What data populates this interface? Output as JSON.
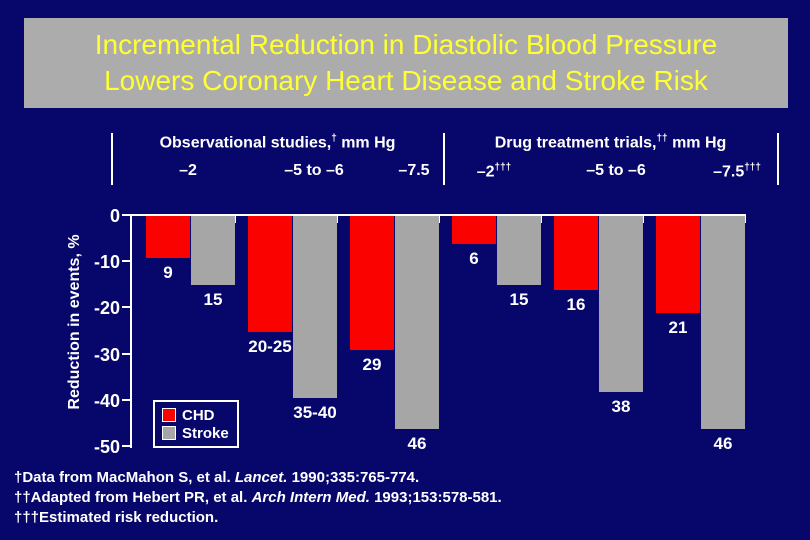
{
  "title": {
    "line1": "Incremental Reduction in Diastolic Blood Pressure",
    "line2": "Lowers Coronary Heart Disease and Stroke Risk"
  },
  "columns": [
    {
      "header": {
        "pre": "Observational studies,",
        "sup": "†",
        "post": " mm Hg"
      },
      "sub_labels": [
        {
          "text": "–2",
          "sup": ""
        },
        {
          "text": "–5 to –6",
          "sup": ""
        },
        {
          "text": "–7.5",
          "sup": ""
        }
      ]
    },
    {
      "header": {
        "pre": "Drug treatment trials,",
        "sup": "††",
        "post": " mm Hg"
      },
      "sub_labels": [
        {
          "text": "–2",
          "sup": "†††"
        },
        {
          "text": "–5 to –6",
          "sup": ""
        },
        {
          "text": "–7.5",
          "sup": "†††"
        }
      ]
    }
  ],
  "y_axis": {
    "title": "Reduction in events, %",
    "ticks": [
      "0",
      "-10",
      "-20",
      "-30",
      "-40",
      "-50"
    ]
  },
  "chart_data": {
    "type": "bar",
    "title": "Incremental Reduction in Diastolic Blood Pressure Lowers Coronary Heart Disease and Stroke Risk",
    "xlabel": "",
    "ylabel": "Reduction in events, %",
    "ylim": [
      -50,
      0
    ],
    "y_ticks": [
      0,
      -10,
      -20,
      -30,
      -40,
      -50
    ],
    "grid": false,
    "legend_position": "inside-bottom-left",
    "group_sections": [
      {
        "section": "Observational studies, mm Hg",
        "categories": [
          "–2",
          "–5 to –6",
          "–7.5"
        ]
      },
      {
        "section": "Drug treatment trials, mm Hg",
        "categories": [
          "–2†††",
          "–5 to –6",
          "–7.5†††"
        ]
      }
    ],
    "categories": [
      "–2",
      "–5 to –6",
      "–7.5",
      "–2†††",
      "–5 to –6",
      "–7.5†††"
    ],
    "series": [
      {
        "name": "CHD",
        "color": "#f90200",
        "values": [
          -9,
          -25,
          -29,
          -6,
          -16,
          -21
        ],
        "labels": [
          "9",
          "20-25",
          "29",
          "6",
          "16",
          "21"
        ]
      },
      {
        "name": "Stroke",
        "color": "#a6a6a6",
        "values": [
          -15,
          -39.5,
          -46,
          -15,
          -38,
          -46
        ],
        "labels": [
          "15",
          "35-40",
          "46",
          "15",
          "38",
          "46"
        ]
      }
    ]
  },
  "legend": [
    {
      "label": "CHD",
      "color": "#f90200"
    },
    {
      "label": "Stroke",
      "color": "#a6a6a6"
    }
  ],
  "footnotes": [
    {
      "pre": "†Data from MacMahon S, et al. ",
      "italic": "Lancet.",
      "post": " 1990;335:765-774."
    },
    {
      "pre": "††Adapted from Hebert PR, et al. ",
      "italic": "Arch Intern Med.",
      "post": " 1993;153:578-581."
    },
    {
      "pre": "†††Estimated risk reduction.",
      "italic": "",
      "post": ""
    }
  ],
  "colors": {
    "background": "#07076b",
    "title_box_bg": "#acacac",
    "title_text": "#ffff33",
    "axis": "#ffffff",
    "chd_red": "#f90200",
    "stroke_gray": "#a6a6a6"
  }
}
